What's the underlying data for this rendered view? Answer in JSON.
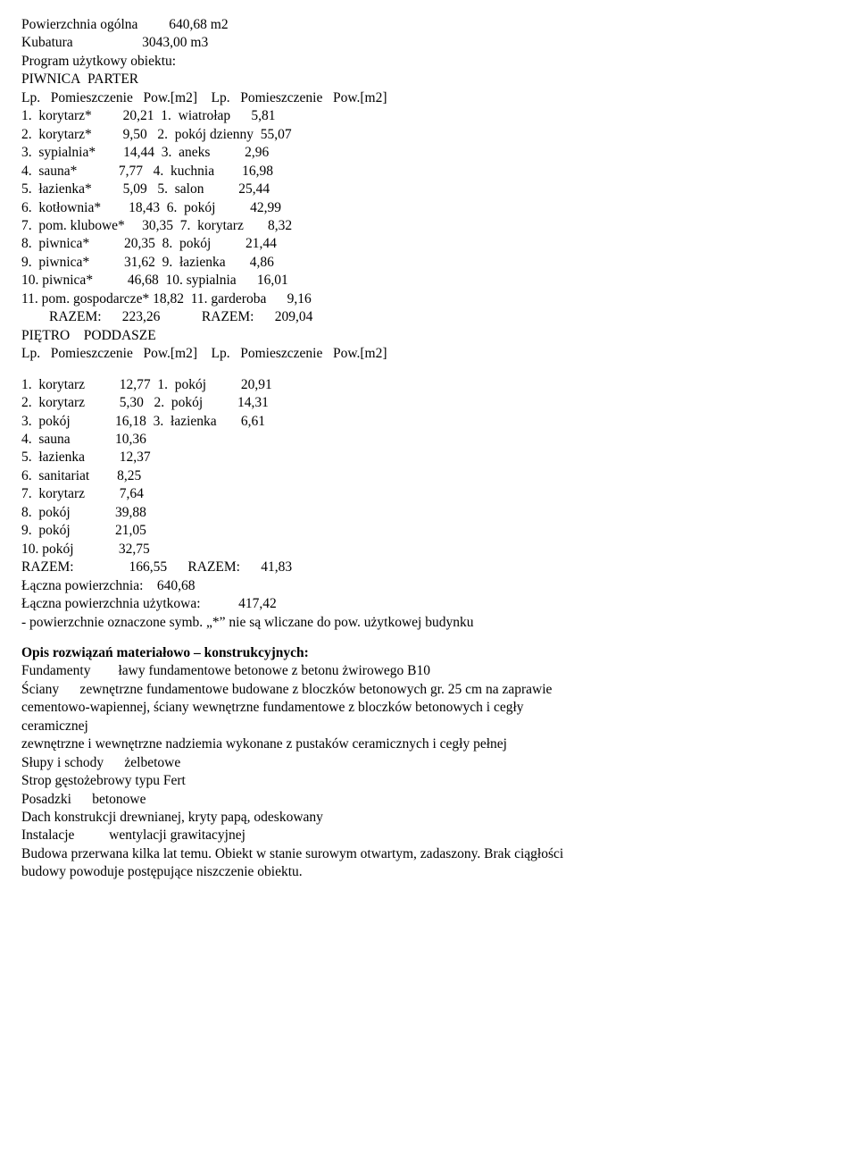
{
  "header": {
    "l1_a": "Powierzchnia ogólna",
    "l1_b": "640,68 m2",
    "l2_a": "Kubatura",
    "l2_b": "3043,00 m3",
    "l3": "Program użytkowy obiektu:",
    "l4": "PIWNICA  PARTER",
    "l5_a": "Lp.",
    "l5_b": "Pomieszczenie",
    "l5_c": "Pow.[m2]",
    "l5_d": "Lp.",
    "l5_e": "Pomieszczenie",
    "l5_f": "Pow.[m2]"
  },
  "rows1": [
    {
      "a": "1.",
      "b": "korytarz*",
      "c": "20,21",
      "d": "1.",
      "e": "wiatrołap",
      "f": "5,81"
    },
    {
      "a": "2.",
      "b": "korytarz*",
      "c": "9,50",
      "d": "2.",
      "e": "pokój dzienny",
      "f": "55,07"
    },
    {
      "a": "3.",
      "b": "sypialnia*",
      "c": "14,44",
      "d": "3.",
      "e": "aneks",
      "f": "2,96"
    },
    {
      "a": "4.",
      "b": "sauna*",
      "c": "7,77",
      "d": "4.",
      "e": "kuchnia",
      "f": "16,98"
    },
    {
      "a": "5.",
      "b": "łazienka*",
      "c": "5,09",
      "d": "5.",
      "e": "salon",
      "f": "25,44"
    },
    {
      "a": "6.",
      "b": "kotłownia*",
      "c": "18,43",
      "d": "6.",
      "e": "pokój",
      "f": "42,99"
    },
    {
      "a": "7.",
      "b": "pom. klubowe*",
      "c": "30,35",
      "d": "7.",
      "e": "korytarz",
      "f": "8,32"
    },
    {
      "a": "8.",
      "b": "piwnica*",
      "c": "20,35",
      "d": "8.",
      "e": "pokój",
      "f": "21,44"
    },
    {
      "a": "9.",
      "b": "piwnica*",
      "c": "31,62",
      "d": "9.",
      "e": "łazienka",
      "f": "4,86"
    },
    {
      "a": "10.",
      "b": "piwnica*",
      "c": "46,68",
      "d": "10.",
      "e": "sypialnia",
      "f": "16,01"
    },
    {
      "a": "11.",
      "b": "pom. gospodarcze*",
      "c": "18,82",
      "d": "11.",
      "e": "garderoba",
      "f": "9,16"
    }
  ],
  "sum1": {
    "a": "RAZEM:",
    "b": "223,26",
    "c": "RAZEM:",
    "d": "209,04"
  },
  "mid": {
    "l1": "PIĘTRO    PODDASZE",
    "l2_a": "Lp.",
    "l2_b": "Pomieszczenie",
    "l2_c": "Pow.[m2]",
    "l2_d": "Lp.",
    "l2_e": "Pomieszczenie",
    "l2_f": "Pow.[m2]"
  },
  "rows2": [
    {
      "a": "1.",
      "b": "korytarz",
      "c": "12,77",
      "d": "1.",
      "e": "pokój",
      "f": "20,91"
    },
    {
      "a": "2.",
      "b": "korytarz",
      "c": "5,30",
      "d": "2.",
      "e": "pokój",
      "f": "14,31"
    },
    {
      "a": "3.",
      "b": "pokój",
      "c": "16,18",
      "d": "3.",
      "e": "łazienka",
      "f": "6,61"
    },
    {
      "a": "4.",
      "b": "sauna",
      "c": "10,36",
      "d": "",
      "e": "",
      "f": ""
    },
    {
      "a": "5.",
      "b": "łazienka",
      "c": "12,37",
      "d": "",
      "e": "",
      "f": ""
    },
    {
      "a": "6.",
      "b": "sanitariat",
      "c": "8,25",
      "d": "",
      "e": "",
      "f": ""
    },
    {
      "a": "7.",
      "b": "korytarz",
      "c": "7,64",
      "d": "",
      "e": "",
      "f": ""
    },
    {
      "a": "8.",
      "b": "pokój",
      "c": "39,88",
      "d": "",
      "e": "",
      "f": ""
    },
    {
      "a": "9.",
      "b": "pokój",
      "c": "21,05",
      "d": "",
      "e": "",
      "f": ""
    },
    {
      "a": "10.",
      "b": "pokój",
      "c": "32,75",
      "d": "",
      "e": "",
      "f": ""
    }
  ],
  "sum2": {
    "a": "RAZEM:",
    "b": "166,55",
    "c": "RAZEM:",
    "d": "41,83"
  },
  "totals": {
    "l1_a": "Łączna powierzchnia:",
    "l1_b": "640,68",
    "l2_a": "Łączna powierzchnia użytkowa:",
    "l2_b": "417,42",
    "l3": "- powierzchnie oznaczone symb. „*” nie są wliczane do pow. użytkowej budynku"
  },
  "desc": {
    "title": "Opis rozwiązań materiałowo – konstrukcyjnych:",
    "l1_a": "Fundamenty",
    "l1_b": "ławy fundamentowe betonowe z betonu żwirowego B10",
    "l2_a": "Ściany",
    "l2_b": "zewnętrzne fundamentowe budowane z bloczków betonowych gr. 25 cm na zaprawie",
    "l3": "cementowo-wapiennej, ściany wewnętrzne fundamentowe z bloczków betonowych i cegły",
    "l4": "ceramicznej",
    "l5": "zewnętrzne i wewnętrzne nadziemia wykonane z pustaków ceramicznych i cegły pełnej",
    "l6_a": "Słupy i schody",
    "l6_b": "żelbetowe",
    "l7": "Strop gęstożebrowy typu Fert",
    "l8_a": "Posadzki",
    "l8_b": "betonowe",
    "l9": "Dach konstrukcji drewnianej, kryty papą, odeskowany",
    "l10_a": "Instalacje",
    "l10_b": "wentylacji grawitacyjnej",
    "l11": "Budowa przerwana kilka lat temu. Obiekt w stanie surowym otwartym, zadaszony. Brak ciągłości",
    "l12": "budowy powoduje postępujące niszczenie obiektu."
  },
  "layout": {
    "colA": 4,
    "colB": 18,
    "colC": 7,
    "colD": 4,
    "colE": 15,
    "colF": 7,
    "sumIndent": 8
  }
}
